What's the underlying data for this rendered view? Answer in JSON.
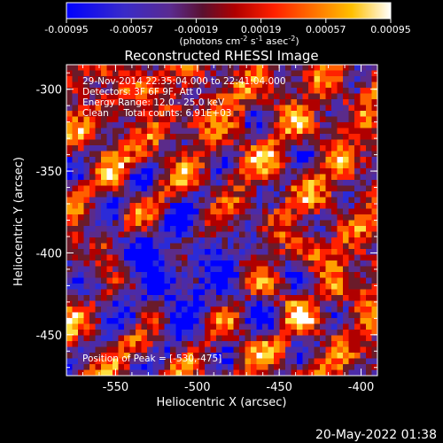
{
  "colorbar": {
    "tick_labels": [
      "-0.00095",
      "-0.00057",
      "-0.00019",
      "0.00019",
      "0.00057",
      "0.00095"
    ],
    "units_main": "(photons cm",
    "units_exp1": "-2",
    "units_mid1": " s",
    "units_exp2": "-1",
    "units_mid2": " asec",
    "units_exp3": "-2",
    "units_end": ")"
  },
  "title": "Reconstructed RHESSI Image",
  "annotations": {
    "line1": "29-Nov-2014 22:35:04.000 to 22:41:04.000",
    "line2": "Detectors: 3F 6F 9F, Att 0",
    "line3": "Energy Range: 12.0 - 25.0 keV",
    "line4": "Clean     Total counts: 6.91E+03",
    "peak": "Position of Peak = [-530,-475]"
  },
  "axes": {
    "xlabel": "Heliocentric X (arcsec)",
    "ylabel": "Heliocentric Y (arcsec)",
    "xticks": [
      "-550",
      "-500",
      "-450",
      "-400"
    ],
    "yticks": [
      "-300",
      "-350",
      "-400",
      "-450"
    ],
    "xrange": [
      -580,
      -390
    ],
    "yrange": [
      -475,
      -285
    ]
  },
  "timestamp": "20-May-2022 01:38",
  "colors": {
    "colormap": [
      "#0000ff",
      "#2b2bd8",
      "#4b2ba8",
      "#5b2b8a",
      "#6a1b2a",
      "#b00000",
      "#ff2000",
      "#ff6000",
      "#ffa000",
      "#ffe040",
      "#ffffff"
    ]
  }
}
